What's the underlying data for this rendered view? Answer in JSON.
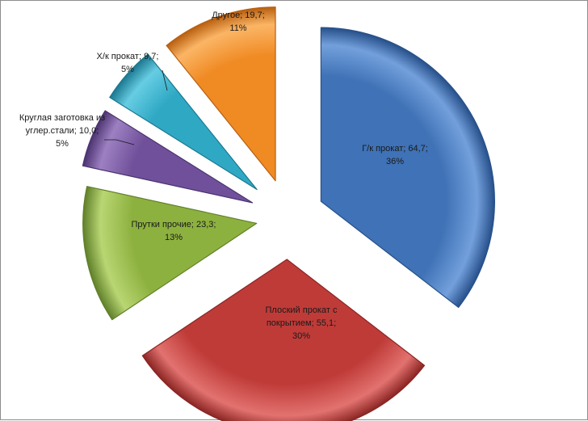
{
  "chart_data": {
    "type": "pie",
    "exploded": true,
    "style": "3d-bevel",
    "legend": "none",
    "series": [
      {
        "values": [
          64.7,
          55.1,
          23.3,
          10.0,
          9.7,
          19.7
        ],
        "categories": [
          "Г/к прокат",
          "Плоский прокат с покрытием",
          "Прутки прочие",
          "Круглая заготовка из углер.стали",
          "Х/к прокат",
          "Другое"
        ],
        "percent_labels": [
          "36%",
          "30%",
          "13%",
          "5%",
          "5%",
          "11%"
        ],
        "value_labels": [
          "64,7",
          "55,1",
          "23,3",
          "10,0",
          "9,7",
          "19,7"
        ]
      }
    ],
    "data_labels": [
      [
        "Г/к прокат; 64,7;",
        "36%"
      ],
      [
        "Плоский прокат с",
        "покрытием; 55,1;",
        "30%"
      ],
      [
        "Прутки прочие; 23,3;",
        "13%"
      ],
      [
        "Круглая заготовка из",
        "углер.стали; 10,0;",
        "5%"
      ],
      [
        "Х/к прокат; 9,7;",
        "5%"
      ],
      [
        "Другое; 19,7;",
        "11%"
      ]
    ],
    "colors": [
      "#3f72b6",
      "#bf3b38",
      "#8db13f",
      "#70509a",
      "#2fa8c4",
      "#f08a23"
    ],
    "highlight_colors": [
      "#73a0dc",
      "#e2726f",
      "#b9d673",
      "#9d80c2",
      "#66cde3",
      "#fbb565"
    ],
    "shadow_colors": [
      "#27508a",
      "#8a2523",
      "#60802a",
      "#4b3370",
      "#1b7890",
      "#b85f10"
    ]
  }
}
